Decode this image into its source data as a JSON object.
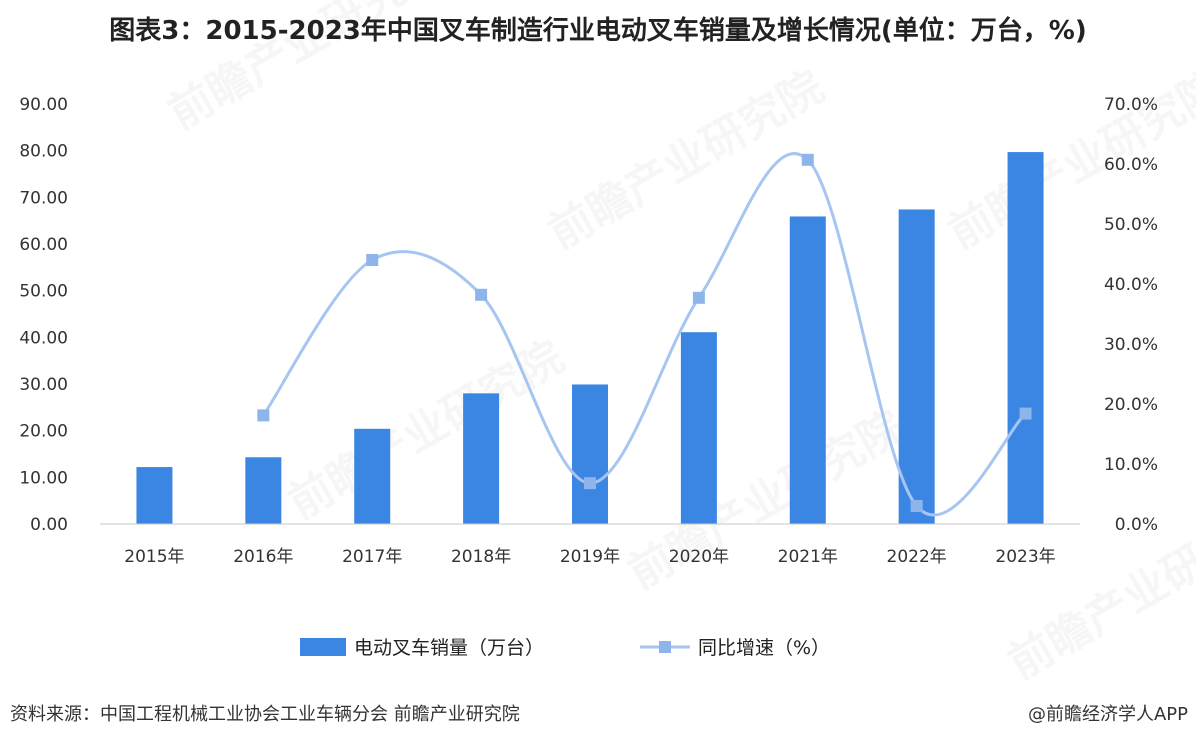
{
  "title": "图表3：2015-2023年中国叉车制造行业电动叉车销量及增长情况(单位：万台，%)",
  "source": "资料来源：中国工程机械工业协会工业车辆分会 前瞻产业研究院",
  "credit": "@前瞻经济学人APP",
  "chart_data": {
    "type": "bar+line",
    "categories": [
      "2015年",
      "2016年",
      "2017年",
      "2018年",
      "2019年",
      "2020年",
      "2021年",
      "2022年",
      "2023年"
    ],
    "series": [
      {
        "name": "电动叉车销量（万台）",
        "type": "bar",
        "axis": "left",
        "values": [
          12.2,
          14.3,
          20.4,
          28.0,
          29.9,
          41.1,
          65.9,
          67.4,
          79.7
        ]
      },
      {
        "name": "同比增速（%）",
        "type": "line",
        "axis": "right",
        "values": [
          null,
          18.1,
          44.0,
          38.2,
          6.8,
          37.7,
          60.7,
          3.0,
          18.4
        ]
      }
    ],
    "left_axis": {
      "ylim": [
        0,
        90
      ],
      "ticks": [
        "0.00",
        "10.00",
        "20.00",
        "30.00",
        "40.00",
        "50.00",
        "60.00",
        "70.00",
        "80.00",
        "90.00"
      ]
    },
    "right_axis": {
      "ylim": [
        0,
        70
      ],
      "ticks": [
        "0.0%",
        "10.0%",
        "20.0%",
        "30.0%",
        "40.0%",
        "50.0%",
        "60.0%",
        "70.0%"
      ]
    },
    "legend_position": "bottom",
    "grid": false,
    "colors": {
      "bar": "#3b86e3",
      "line": "#a6c6f1",
      "marker": "#8db5ec"
    }
  }
}
